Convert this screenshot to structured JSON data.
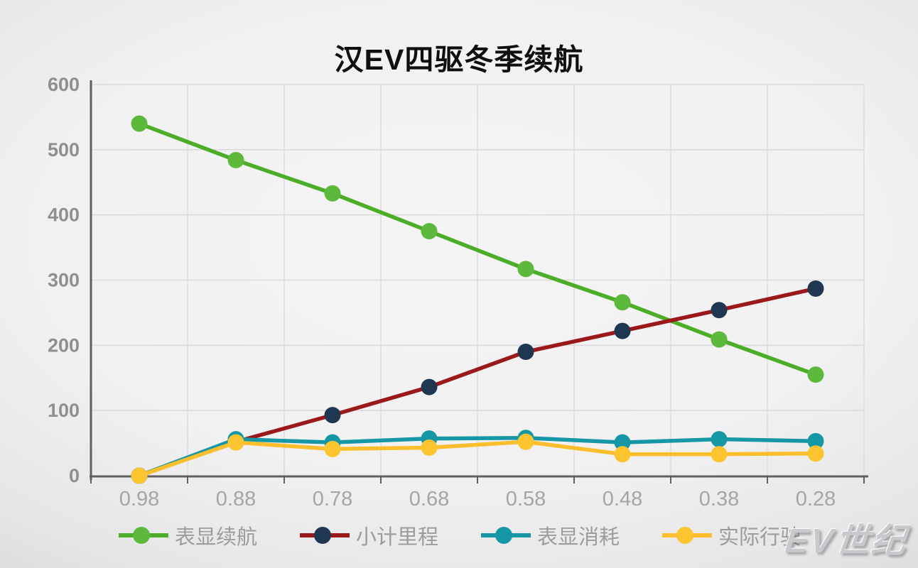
{
  "chart": {
    "title": "汉EV四驱冬季续航"
  },
  "watermark": {
    "text": "EV世纪"
  },
  "chart_data": {
    "type": "line",
    "title": "汉EV四驱冬季续航",
    "categories": [
      "0.98",
      "0.88",
      "0.78",
      "0.68",
      "0.58",
      "0.48",
      "0.38",
      "0.28"
    ],
    "xlabel": "",
    "ylabel": "",
    "ylim": [
      0,
      600
    ],
    "yticks": [
      0,
      100,
      200,
      300,
      400,
      500,
      600
    ],
    "grid": true,
    "legend_position": "bottom",
    "series": [
      {
        "name": "表显续航",
        "line_color": "#4cae28",
        "marker_color": "#5cb93c",
        "values": [
          540,
          484,
          433,
          375,
          317,
          266,
          209,
          155
        ]
      },
      {
        "name": "小计里程",
        "line_color": "#9b181b",
        "marker_color": "#1f3750",
        "values": [
          0,
          52,
          93,
          136,
          190,
          222,
          254,
          287
        ]
      },
      {
        "name": "表显消耗",
        "line_color": "#1697a5",
        "marker_color": "#1697a5",
        "values": [
          0,
          56,
          51,
          57,
          58,
          51,
          56,
          53
        ]
      },
      {
        "name": "实际行驶",
        "line_color": "#fbbe2d",
        "marker_color": "#fcc42f",
        "values": [
          0,
          51,
          41,
          43,
          52,
          33,
          33,
          34
        ]
      }
    ],
    "style": {
      "grid_color": "#dcdbdc",
      "axis_color": "#5f5f5f",
      "y_label_color": "#8f8f8f",
      "x_label_color": "#a5a5a5",
      "legend_text_color": "#9c9c9c"
    }
  }
}
